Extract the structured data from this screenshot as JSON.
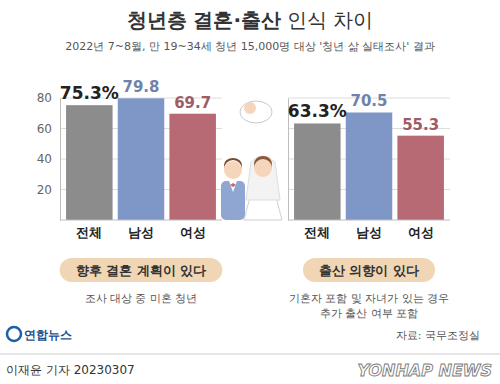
{
  "header": {
    "title": [
      "청년층 결혼·출산",
      "인식 차이"
    ],
    "subtitle": "2022년 7~8월, 만 19~34세 청년 15,000명 대상 '청년 삶 실태조사' 결과"
  },
  "chart_data": [
    {
      "type": "bar",
      "title": "향후 결혼 계획이 있다",
      "note": [
        "조사 대상 중 미혼 청년"
      ],
      "categories": [
        "전체",
        "남성",
        "여성"
      ],
      "values": [
        75.3,
        79.8,
        69.7
      ],
      "value_labels": [
        "75.3%",
        "79.8",
        "69.7"
      ],
      "colors": [
        "#8c8c8c",
        "#7f97c6",
        "#b86a74"
      ],
      "ylim": [
        0,
        80
      ],
      "yticks": [
        20,
        40,
        60,
        80
      ],
      "grid": true,
      "data_labels": true
    },
    {
      "type": "bar",
      "title": "출산 의향이 있다",
      "note": [
        "기혼자 포함 및 자녀가 있는 경우",
        "추가 출산 여부 포함"
      ],
      "categories": [
        "전체",
        "남성",
        "여성"
      ],
      "values": [
        63.3,
        70.5,
        55.3
      ],
      "value_labels": [
        "63.3%",
        "70.5",
        "55.3"
      ],
      "colors": [
        "#8c8c8c",
        "#7f97c6",
        "#b86a74"
      ],
      "ylim": [
        0,
        80
      ],
      "yticks": [
        20,
        40,
        60,
        80
      ],
      "grid": true,
      "data_labels": true,
      "tick_labels": "x"
    }
  ],
  "footer": {
    "logo": "연합뉴스",
    "source": "자료: 국무조정실",
    "credit": "이재윤 기자 20230307",
    "watermark": "YONHAP NEWS"
  }
}
